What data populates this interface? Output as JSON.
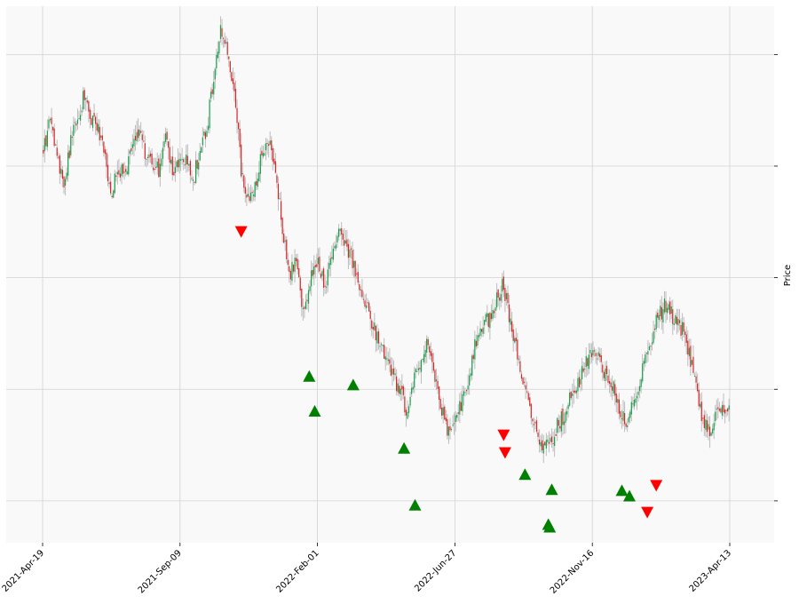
{
  "chart_data": {
    "type": "candlestick",
    "title": "",
    "xlabel": "",
    "ylabel": "Price",
    "ylim": [
      0,
      100
    ],
    "x_range": [
      0,
      100
    ],
    "x_ticks": [
      {
        "x": 0,
        "label": "2021-Apr-19"
      },
      {
        "x": 20,
        "label": "2021-Sep-09"
      },
      {
        "x": 40,
        "label": "2022-Feb-01"
      },
      {
        "x": 60,
        "label": "2022-Jun-27"
      },
      {
        "x": 80,
        "label": "2022-Nov-16"
      },
      {
        "x": 100,
        "label": "2023-Apr-13"
      }
    ],
    "y_ticks": [
      91,
      70.2,
      49.4,
      28.6,
      7.8
    ],
    "y_tick_labels": [
      "",
      "",
      "",
      "",
      ""
    ],
    "grid": true,
    "colors": {
      "up": "#16a34a",
      "down": "#dc2626",
      "wick": "#bdbdbd",
      "plot_bg": "#f9f9fa",
      "grid": "#d3d3d3",
      "buy": "#008000",
      "sell": "#ff0000"
    },
    "price_path": [
      [
        0,
        73
      ],
      [
        1,
        78
      ],
      [
        2,
        74
      ],
      [
        3,
        66
      ],
      [
        4,
        74
      ],
      [
        5,
        79
      ],
      [
        6,
        83
      ],
      [
        7,
        79
      ],
      [
        8,
        77
      ],
      [
        9,
        72
      ],
      [
        10,
        65
      ],
      [
        11,
        70
      ],
      [
        12,
        68
      ],
      [
        13,
        74
      ],
      [
        14,
        77
      ],
      [
        15,
        72
      ],
      [
        16,
        71
      ],
      [
        17,
        69
      ],
      [
        18,
        76
      ],
      [
        19,
        68
      ],
      [
        20,
        72
      ],
      [
        21,
        71
      ],
      [
        22,
        68
      ],
      [
        23,
        74
      ],
      [
        24,
        78
      ],
      [
        25,
        88
      ],
      [
        26,
        96
      ],
      [
        27,
        90
      ],
      [
        28,
        84
      ],
      [
        29,
        68
      ],
      [
        30,
        64
      ],
      [
        31,
        67
      ],
      [
        32,
        73
      ],
      [
        33,
        74
      ],
      [
        34,
        68
      ],
      [
        35,
        58
      ],
      [
        36,
        50
      ],
      [
        37,
        53
      ],
      [
        38,
        42
      ],
      [
        39,
        49
      ],
      [
        40,
        52
      ],
      [
        41,
        48
      ],
      [
        42,
        52
      ],
      [
        43,
        58
      ],
      [
        44,
        55
      ],
      [
        45,
        53
      ],
      [
        46,
        48
      ],
      [
        47,
        45
      ],
      [
        48,
        41
      ],
      [
        49,
        37
      ],
      [
        50,
        34
      ],
      [
        51,
        31
      ],
      [
        52,
        28
      ],
      [
        53,
        25
      ],
      [
        54,
        30
      ],
      [
        55,
        34
      ],
      [
        56,
        38
      ],
      [
        57,
        32
      ],
      [
        58,
        25
      ],
      [
        59,
        21
      ],
      [
        60,
        24
      ],
      [
        61,
        26
      ],
      [
        62,
        31
      ],
      [
        63,
        37
      ],
      [
        64,
        40
      ],
      [
        65,
        42
      ],
      [
        66,
        45
      ],
      [
        67,
        48
      ],
      [
        68,
        42
      ],
      [
        69,
        36
      ],
      [
        70,
        30
      ],
      [
        71,
        24
      ],
      [
        72,
        20
      ],
      [
        73,
        17
      ],
      [
        74,
        19
      ],
      [
        75,
        22
      ],
      [
        76,
        24
      ],
      [
        77,
        28
      ],
      [
        78,
        30
      ],
      [
        79,
        33
      ],
      [
        80,
        35
      ],
      [
        81,
        34
      ],
      [
        82,
        31
      ],
      [
        83,
        29
      ],
      [
        84,
        25
      ],
      [
        85,
        23
      ],
      [
        86,
        26
      ],
      [
        87,
        31
      ],
      [
        88,
        36
      ],
      [
        89,
        40
      ],
      [
        90,
        43
      ],
      [
        91,
        45
      ],
      [
        92,
        41
      ],
      [
        93,
        40
      ],
      [
        94,
        36
      ],
      [
        95,
        30
      ],
      [
        96,
        22
      ],
      [
        97,
        21
      ],
      [
        98,
        24
      ],
      [
        99,
        25
      ],
      [
        100,
        26
      ]
    ],
    "buy_markers": [
      {
        "x": 38.8,
        "y": 31.0
      },
      {
        "x": 39.6,
        "y": 24.5
      },
      {
        "x": 45.2,
        "y": 29.4
      },
      {
        "x": 52.6,
        "y": 17.6
      },
      {
        "x": 54.2,
        "y": 7.0
      },
      {
        "x": 70.2,
        "y": 12.7
      },
      {
        "x": 73.6,
        "y": 3.4
      },
      {
        "x": 73.8,
        "y": 2.9
      },
      {
        "x": 74.1,
        "y": 9.9
      },
      {
        "x": 84.3,
        "y": 9.7
      },
      {
        "x": 85.4,
        "y": 8.7
      }
    ],
    "sell_markers": [
      {
        "x": 28.9,
        "y": 58.0
      },
      {
        "x": 67.1,
        "y": 20.1
      },
      {
        "x": 67.3,
        "y": 16.8
      },
      {
        "x": 88.0,
        "y": 5.7
      },
      {
        "x": 89.3,
        "y": 10.7
      }
    ]
  }
}
